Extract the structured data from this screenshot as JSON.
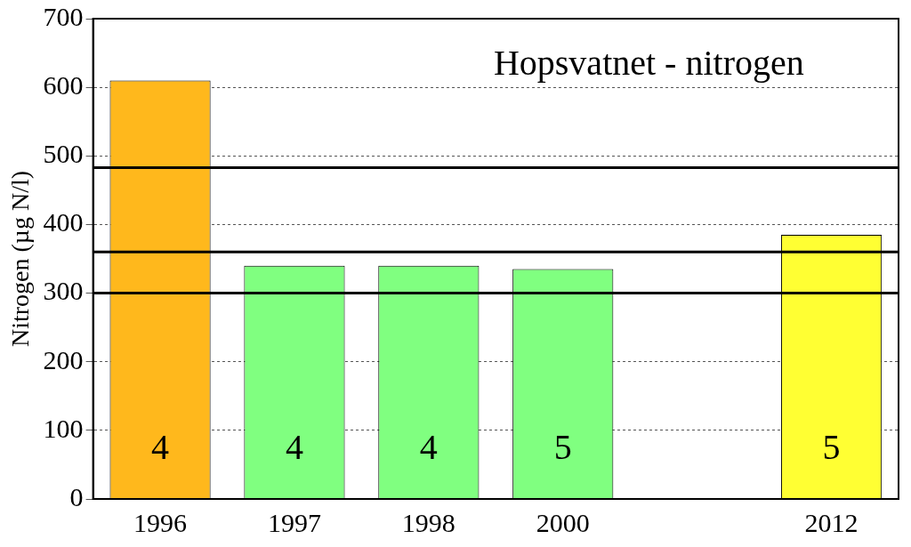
{
  "chart_data": {
    "type": "bar",
    "title": "Hopsvatnet - nitrogen",
    "y_label": "Nitrogen (µg N/l)",
    "categories": [
      "1996",
      "1997",
      "1998",
      "2000",
      null,
      "2012"
    ],
    "values": [
      610,
      340,
      340,
      335,
      null,
      385
    ],
    "colors": [
      "#FFB81C",
      "#80FF80",
      "#80FF80",
      "#80FF80",
      null,
      "#FFFF33"
    ],
    "bar_labels": [
      4,
      4,
      4,
      5,
      null,
      5
    ],
    "reference_lines": [
      483,
      360,
      300
    ],
    "ylim": [
      0,
      700
    ],
    "yticks": [
      0,
      100,
      200,
      300,
      400,
      500,
      600,
      700
    ],
    "grid": true
  }
}
